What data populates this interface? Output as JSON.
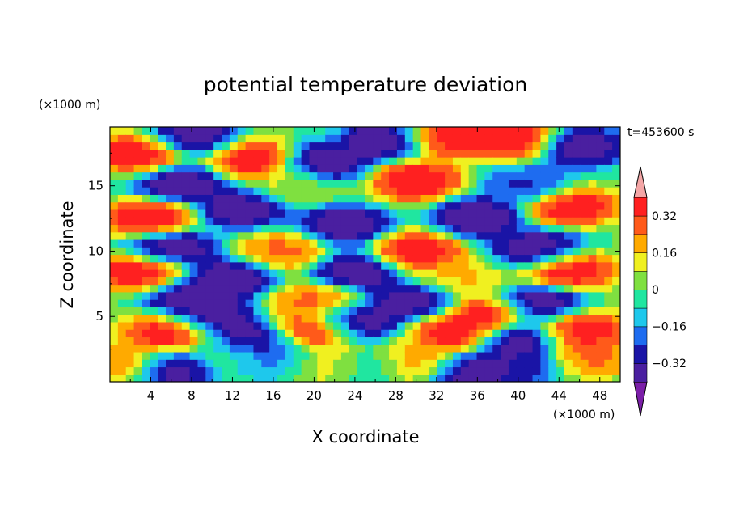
{
  "chart_data": {
    "type": "heatmap",
    "title": "potential temperature deviation",
    "xlabel": "X coordinate",
    "ylabel": "Z coordinate",
    "x_unit": "(×1000 m)",
    "y_unit": "(×1000 m)",
    "time_label": "t=453600 s",
    "x_range": [
      0,
      50
    ],
    "y_range": [
      0,
      19.5
    ],
    "x_ticks": [
      "4",
      "8",
      "12",
      "16",
      "20",
      "24",
      "28",
      "32",
      "36",
      "40",
      "44",
      "48"
    ],
    "x_tick_values": [
      4,
      8,
      12,
      16,
      20,
      24,
      28,
      32,
      36,
      40,
      44,
      48
    ],
    "y_ticks": [
      "5",
      "10",
      "15"
    ],
    "y_tick_values": [
      5,
      10,
      15
    ],
    "colorbar": {
      "levels": [
        -0.4,
        -0.32,
        -0.24,
        -0.16,
        -0.08,
        0,
        0.08,
        0.16,
        0.24,
        0.32,
        0.4
      ],
      "labels": [
        "0.32",
        "0.16",
        "0",
        "−0.16",
        "−0.32"
      ],
      "label_values": [
        0.32,
        0.16,
        0,
        -0.16,
        -0.32
      ],
      "colors": [
        "#7b1fa8",
        "#4a1fa0",
        "#1a14a6",
        "#1e6cf0",
        "#1ec8ec",
        "#20e6a0",
        "#7fe040",
        "#f0f020",
        "#ffaa00",
        "#ff5a1a",
        "#ff2020",
        "#f4a6a6"
      ],
      "extend": "both"
    },
    "features": [
      {
        "x": 3,
        "z": 17.5,
        "value": 0.45
      },
      {
        "x": 8,
        "z": 18.8,
        "value": -0.45
      },
      {
        "x": 14,
        "z": 17.0,
        "value": 0.45
      },
      {
        "x": 21,
        "z": 16.8,
        "value": -0.45
      },
      {
        "x": 27,
        "z": 18.5,
        "value": -0.45
      },
      {
        "x": 33,
        "z": 18.8,
        "value": 0.45
      },
      {
        "x": 40,
        "z": 18.6,
        "value": 0.45
      },
      {
        "x": 46,
        "z": 18.0,
        "value": -0.45
      },
      {
        "x": 7,
        "z": 15.2,
        "value": -0.45
      },
      {
        "x": 18,
        "z": 15.0,
        "value": 0.1
      },
      {
        "x": 30,
        "z": 15.4,
        "value": 0.45
      },
      {
        "x": 41,
        "z": 15.0,
        "value": -0.3
      },
      {
        "x": 4,
        "z": 12.5,
        "value": 0.45
      },
      {
        "x": 13,
        "z": 13.3,
        "value": -0.45
      },
      {
        "x": 23,
        "z": 12.0,
        "value": -0.45
      },
      {
        "x": 36,
        "z": 12.6,
        "value": -0.45
      },
      {
        "x": 45,
        "z": 13.5,
        "value": 0.45
      },
      {
        "x": 6,
        "z": 10.3,
        "value": -0.45
      },
      {
        "x": 17,
        "z": 10.0,
        "value": 0.3
      },
      {
        "x": 30,
        "z": 10.0,
        "value": 0.45
      },
      {
        "x": 42,
        "z": 10.2,
        "value": -0.45
      },
      {
        "x": 3,
        "z": 8.5,
        "value": 0.45
      },
      {
        "x": 12,
        "z": 8.0,
        "value": -0.45
      },
      {
        "x": 24,
        "z": 8.5,
        "value": -0.45
      },
      {
        "x": 34,
        "z": 7.8,
        "value": 0.2
      },
      {
        "x": 45,
        "z": 8.6,
        "value": 0.45
      },
      {
        "x": 8,
        "z": 6.5,
        "value": -0.45
      },
      {
        "x": 20,
        "z": 6.2,
        "value": 0.3
      },
      {
        "x": 30,
        "z": 6.3,
        "value": -0.45
      },
      {
        "x": 42,
        "z": 6.0,
        "value": -0.45
      },
      {
        "x": 10,
        "z": 4.9,
        "value": -0.45
      },
      {
        "x": 24,
        "z": 4.6,
        "value": -0.45
      },
      {
        "x": 37,
        "z": 5.1,
        "value": 0.45
      },
      {
        "x": 6,
        "z": 3.8,
        "value": 0.45
      },
      {
        "x": 20,
        "z": 3.9,
        "value": 0.45
      },
      {
        "x": 34,
        "z": 3.9,
        "value": 0.45
      },
      {
        "x": 46,
        "z": 4.0,
        "value": 0.45
      },
      {
        "x": 14,
        "z": 3.2,
        "value": -0.45
      },
      {
        "x": 40,
        "z": 3.3,
        "value": -0.45
      },
      {
        "x": 1.5,
        "z": 1.5,
        "value": 0.3
      },
      {
        "x": 6,
        "z": 1.0,
        "value": -0.45
      },
      {
        "x": 12,
        "z": 2.0,
        "value": 0.0
      },
      {
        "x": 16,
        "z": 1.8,
        "value": -0.25
      },
      {
        "x": 21,
        "z": 1.4,
        "value": 0.15
      },
      {
        "x": 26,
        "z": 1.2,
        "value": -0.1
      },
      {
        "x": 30,
        "z": 1.5,
        "value": 0.3
      },
      {
        "x": 35,
        "z": 0.8,
        "value": -0.45
      },
      {
        "x": 40,
        "z": 1.3,
        "value": -0.35
      },
      {
        "x": 47,
        "z": 2.0,
        "value": 0.3
      }
    ]
  }
}
